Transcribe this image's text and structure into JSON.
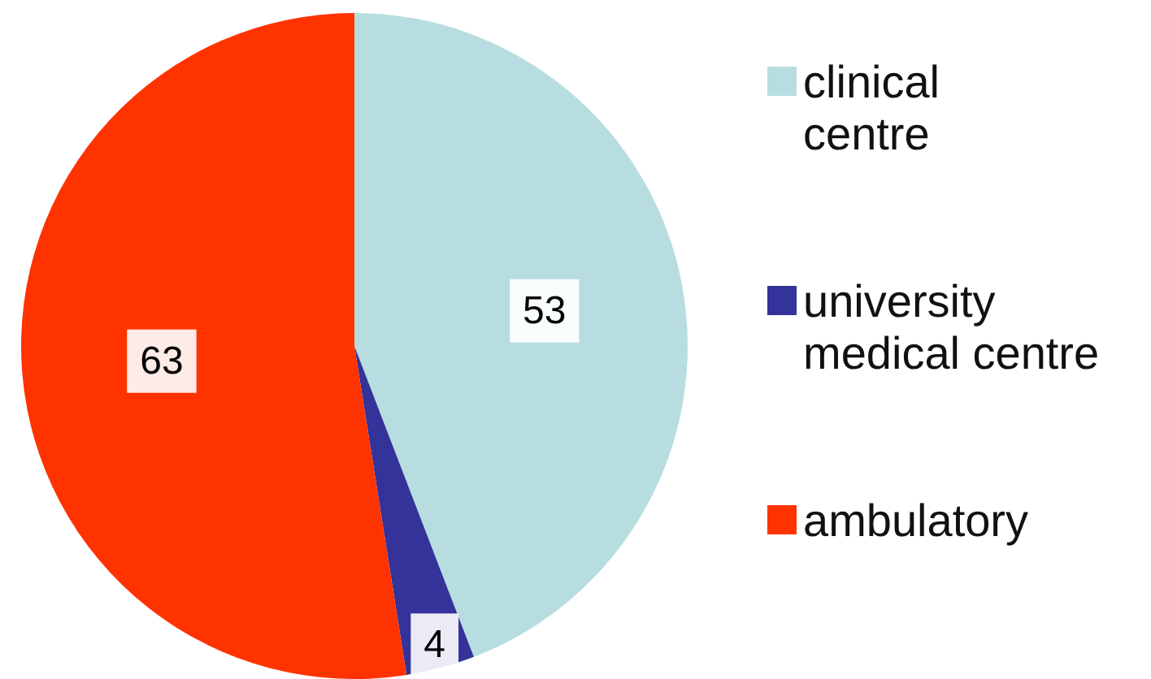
{
  "chart_data": {
    "type": "pie",
    "categories": [
      "clinical centre",
      "university medical centre",
      "ambulatory"
    ],
    "values": [
      53,
      4,
      63
    ],
    "colors": [
      "#b7dde0",
      "#333399",
      "#ff3300"
    ],
    "data_labels": true,
    "legend": "right"
  }
}
